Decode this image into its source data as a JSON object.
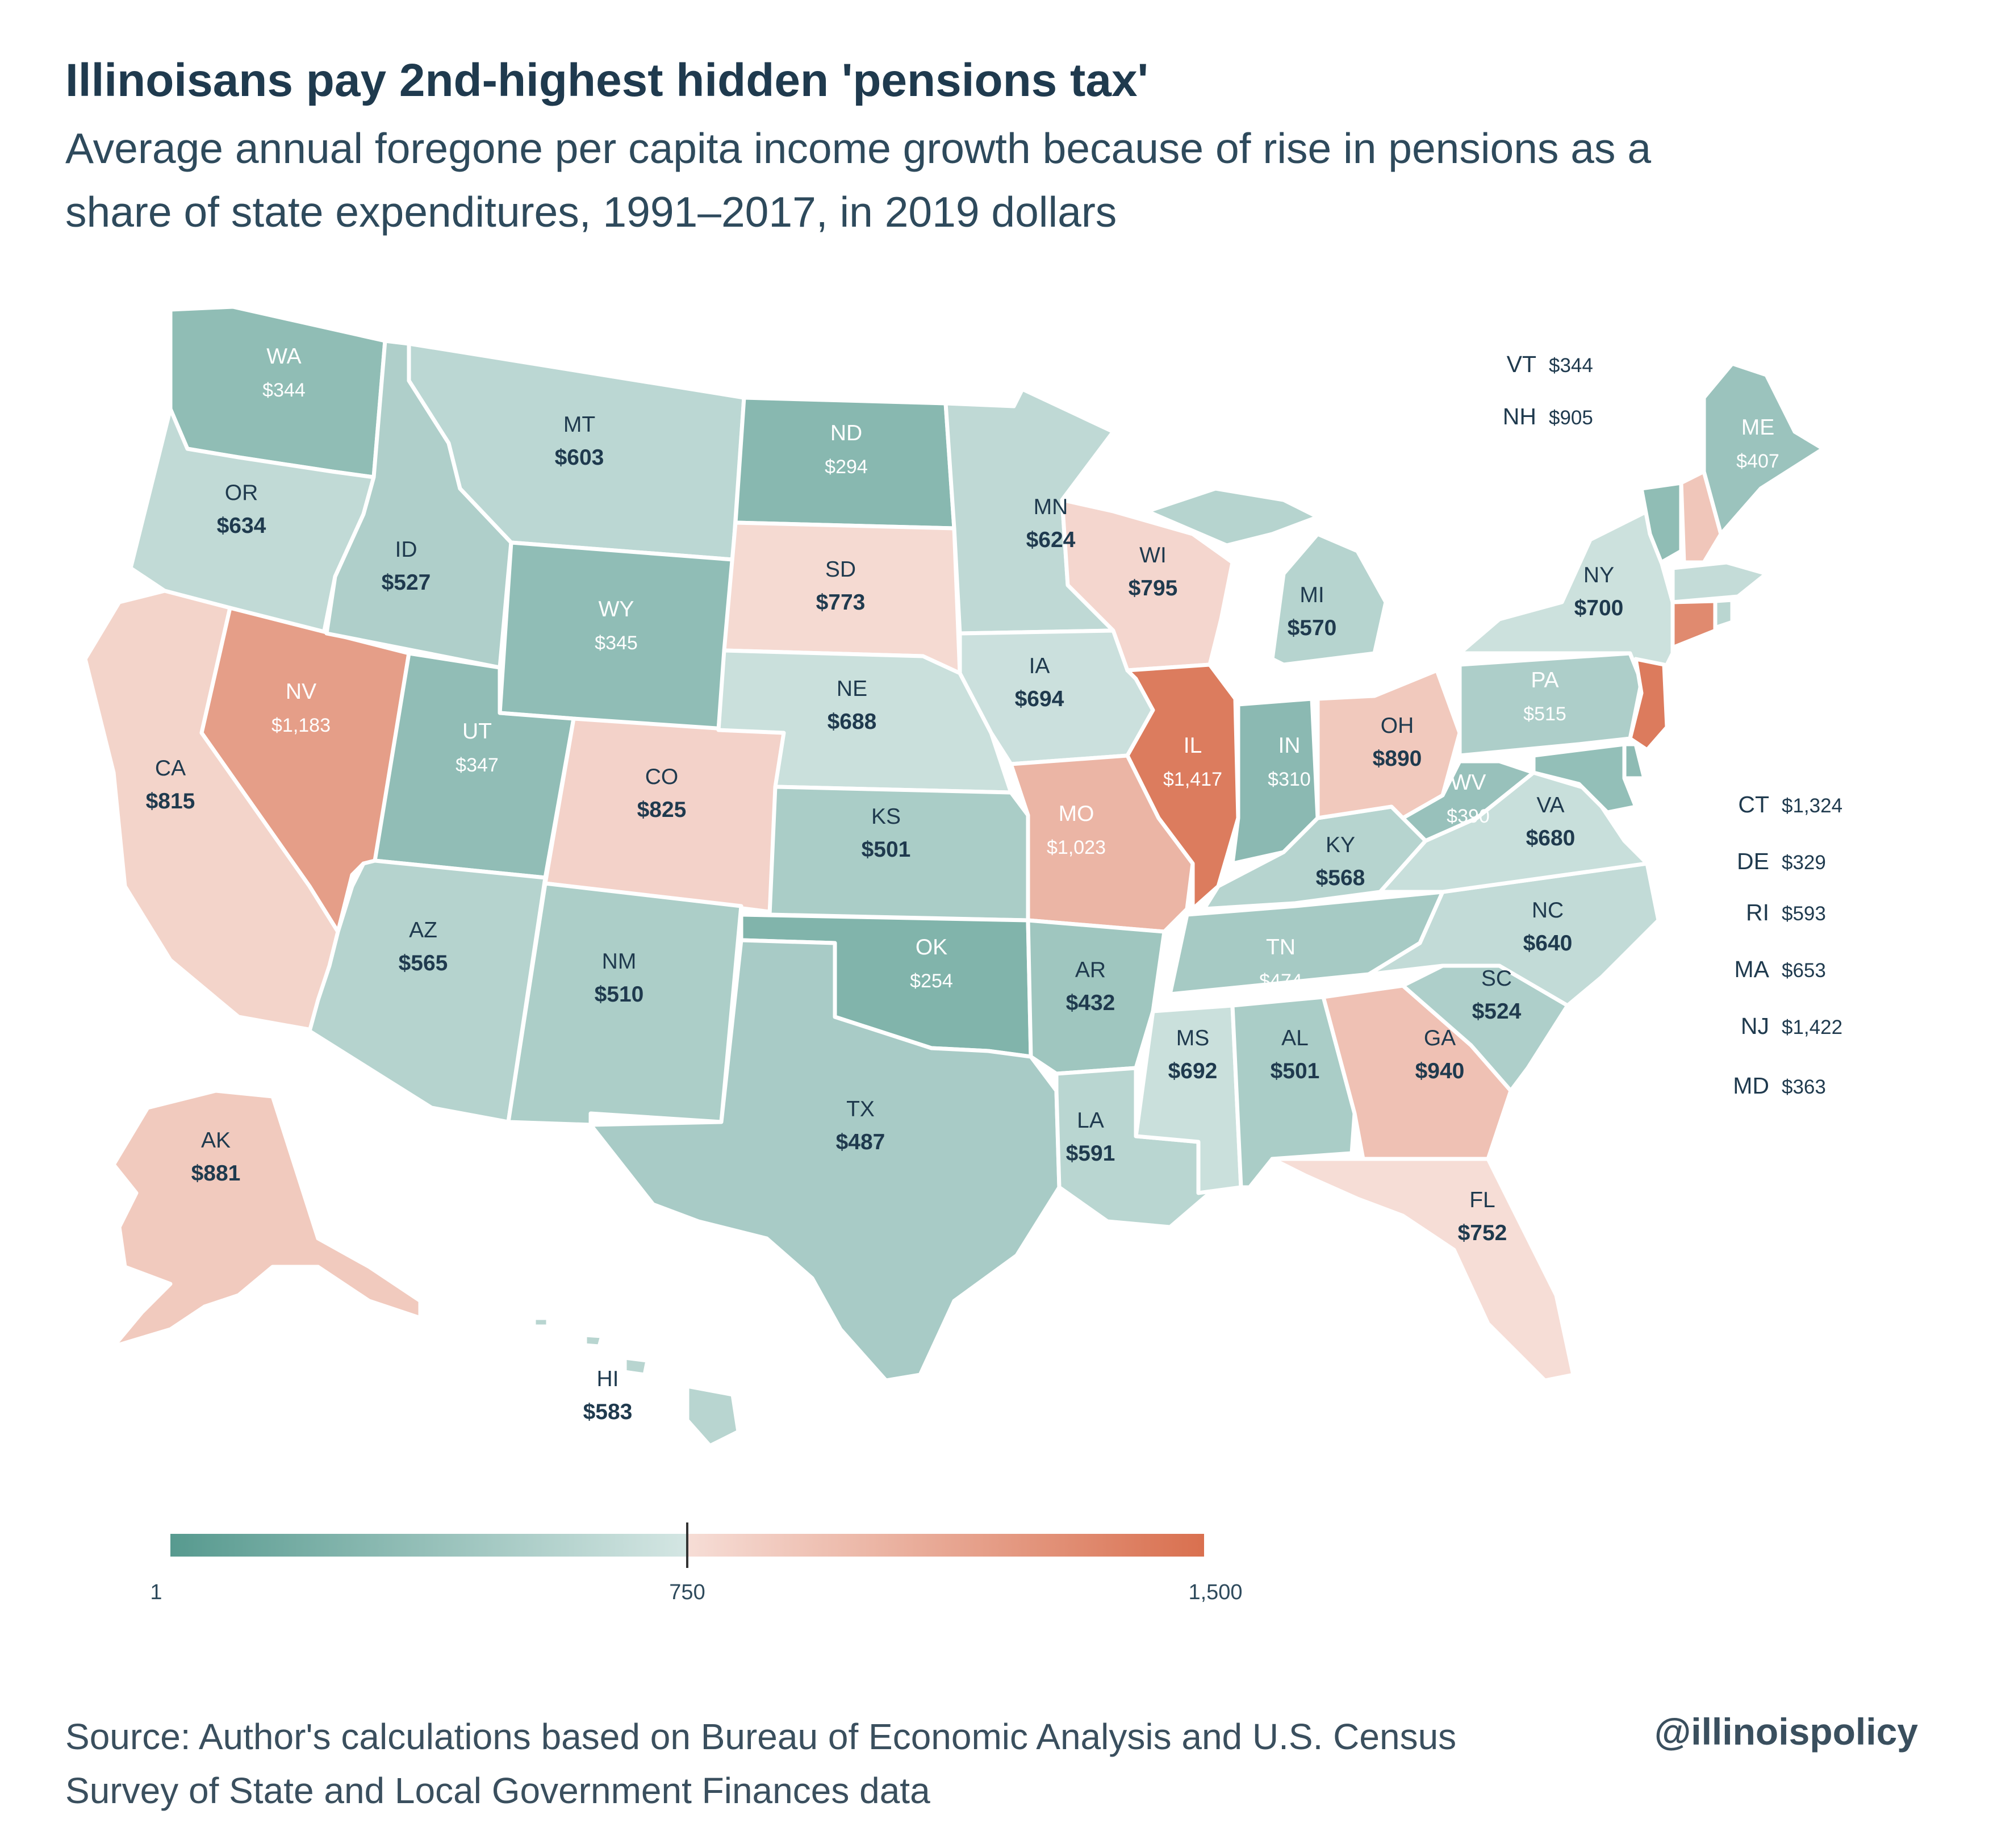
{
  "title": "Illinoisans pay 2nd-highest hidden 'pensions tax'",
  "subtitle": "Average annual foregone per capita income growth because of rise in pensions as a share of state expenditures, 1991–2017, in 2019 dollars",
  "source": "Source:  Author's calculations based on Bureau of Economic Analysis and U.S. Census Survey of State and Local Government Finances data",
  "handle": "@illinoispolicy",
  "legend": {
    "min_label": "1",
    "mid_label": "750",
    "max_label": "1,500",
    "min": 1,
    "mid": 750,
    "max": 1500,
    "colors": [
      "#579a8f",
      "#d4e6e3",
      "#f6ddd6",
      "#d9704f"
    ]
  },
  "colors": {
    "title": "#1f3a4e",
    "low": "#579a8f",
    "mid_low": "#d4e6e3",
    "mid_high": "#f6ddd6",
    "high": "#d9704f"
  },
  "states": [
    {
      "abbr": "WA",
      "value": "$344",
      "num": 344
    },
    {
      "abbr": "OR",
      "value": "$634",
      "num": 634
    },
    {
      "abbr": "CA",
      "value": "$815",
      "num": 815
    },
    {
      "abbr": "NV",
      "value": "$1,183",
      "num": 1183
    },
    {
      "abbr": "ID",
      "value": "$527",
      "num": 527
    },
    {
      "abbr": "MT",
      "value": "$603",
      "num": 603
    },
    {
      "abbr": "WY",
      "value": "$345",
      "num": 345
    },
    {
      "abbr": "UT",
      "value": "$347",
      "num": 347
    },
    {
      "abbr": "AZ",
      "value": "$565",
      "num": 565
    },
    {
      "abbr": "CO",
      "value": "$825",
      "num": 825
    },
    {
      "abbr": "NM",
      "value": "$510",
      "num": 510
    },
    {
      "abbr": "ND",
      "value": "$294",
      "num": 294
    },
    {
      "abbr": "SD",
      "value": "$773",
      "num": 773
    },
    {
      "abbr": "NE",
      "value": "$688",
      "num": 688
    },
    {
      "abbr": "KS",
      "value": "$501",
      "num": 501
    },
    {
      "abbr": "OK",
      "value": "$254",
      "num": 254
    },
    {
      "abbr": "TX",
      "value": "$487",
      "num": 487
    },
    {
      "abbr": "MN",
      "value": "$624",
      "num": 624
    },
    {
      "abbr": "IA",
      "value": "$694",
      "num": 694
    },
    {
      "abbr": "MO",
      "value": "$1,023",
      "num": 1023
    },
    {
      "abbr": "AR",
      "value": "$432",
      "num": 432
    },
    {
      "abbr": "LA",
      "value": "$591",
      "num": 591
    },
    {
      "abbr": "WI",
      "value": "$795",
      "num": 795
    },
    {
      "abbr": "IL",
      "value": "$1,417",
      "num": 1417
    },
    {
      "abbr": "MS",
      "value": "$692",
      "num": 692
    },
    {
      "abbr": "MI",
      "value": "$570",
      "num": 570
    },
    {
      "abbr": "IN",
      "value": "$310",
      "num": 310
    },
    {
      "abbr": "KY",
      "value": "$568",
      "num": 568
    },
    {
      "abbr": "TN",
      "value": "$474",
      "num": 474
    },
    {
      "abbr": "AL",
      "value": "$501",
      "num": 501
    },
    {
      "abbr": "OH",
      "value": "$890",
      "num": 890
    },
    {
      "abbr": "GA",
      "value": "$940",
      "num": 940
    },
    {
      "abbr": "FL",
      "value": "$752",
      "num": 752
    },
    {
      "abbr": "SC",
      "value": "$524",
      "num": 524
    },
    {
      "abbr": "NC",
      "value": "$640",
      "num": 640
    },
    {
      "abbr": "VA",
      "value": "$680",
      "num": 680
    },
    {
      "abbr": "WV",
      "value": "$390",
      "num": 390
    },
    {
      "abbr": "PA",
      "value": "$515",
      "num": 515
    },
    {
      "abbr": "NY",
      "value": "$700",
      "num": 700
    },
    {
      "abbr": "ME",
      "value": "$407",
      "num": 407
    },
    {
      "abbr": "AK",
      "value": "$881",
      "num": 881
    },
    {
      "abbr": "HI",
      "value": "$583",
      "num": 583
    }
  ],
  "side_states": [
    {
      "abbr": "VT",
      "value": "$344",
      "num": 344
    },
    {
      "abbr": "NH",
      "value": "$905",
      "num": 905
    },
    {
      "abbr": "CT",
      "value": "$1,324",
      "num": 1324
    },
    {
      "abbr": "DE",
      "value": "$329",
      "num": 329
    },
    {
      "abbr": "RI",
      "value": "$593",
      "num": 593
    },
    {
      "abbr": "MA",
      "value": "$653",
      "num": 653
    },
    {
      "abbr": "NJ",
      "value": "$1,422",
      "num": 1422
    },
    {
      "abbr": "MD",
      "value": "$363",
      "num": 363
    }
  ]
}
